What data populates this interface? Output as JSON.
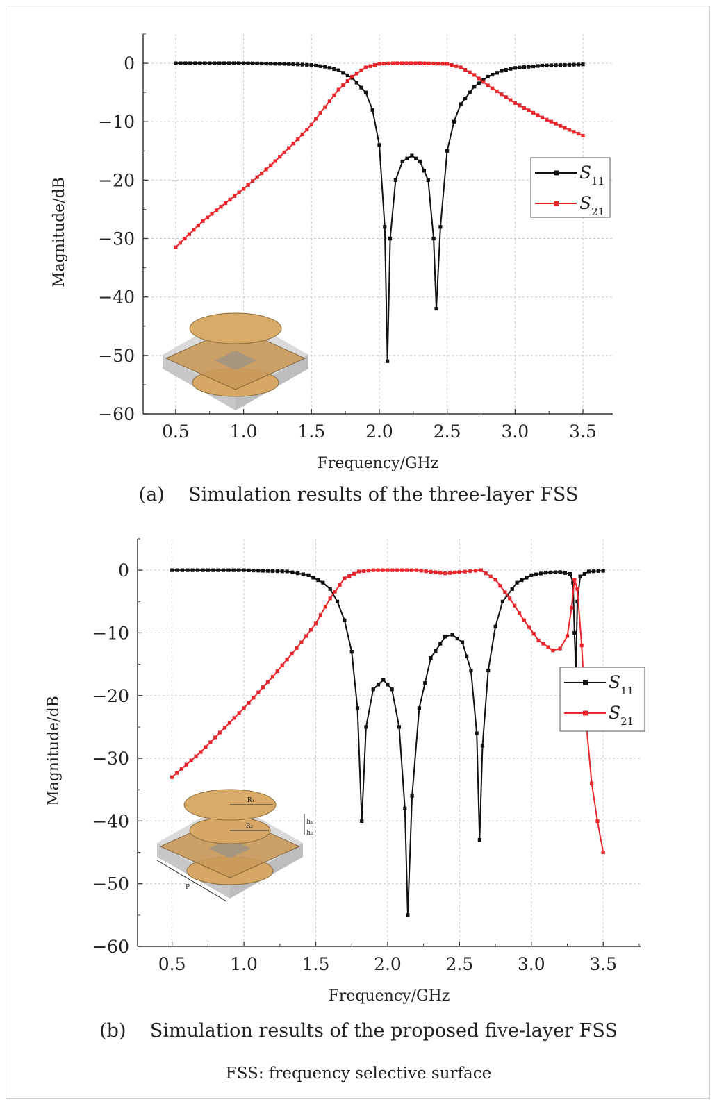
{
  "figure_note": "FSS: frequency selective surface",
  "colors": {
    "s11": "#111111",
    "s21": "#e8272d",
    "grid": "#c8c8c8",
    "axis": "#333333"
  },
  "inset_b_labels": [
    "R₁",
    "R₂",
    "h₁",
    "h₂",
    "P"
  ],
  "chart_data": [
    {
      "type": "line",
      "caption_label": "(a)",
      "caption_text": "Simulation results of the three-layer FSS",
      "xlabel": "Frequency/GHz",
      "ylabel": "Magnitude/dB",
      "xlim": [
        0.26,
        3.72
      ],
      "ylim": [
        -60,
        5
      ],
      "xticks": [
        0.5,
        1.0,
        1.5,
        2.0,
        2.5,
        3.0,
        3.5
      ],
      "xtick_labels": [
        "0.5",
        "1.0",
        "1.5",
        "2.0",
        "2.5",
        "3.0",
        "3.5"
      ],
      "yticks": [
        0,
        -10,
        -20,
        -30,
        -40,
        -50,
        -60
      ],
      "ytick_labels": [
        "0",
        "−10",
        "−20",
        "−30",
        "−40",
        "−50",
        "−60"
      ],
      "grid": true,
      "legend": "right",
      "series": [
        {
          "name": "S11",
          "symbol": "S",
          "subscript": "11",
          "points": [
            [
              0.5,
              0
            ],
            [
              1.0,
              0
            ],
            [
              1.3,
              -0.1
            ],
            [
              1.5,
              -0.3
            ],
            [
              1.6,
              -0.6
            ],
            [
              1.7,
              -1.2
            ],
            [
              1.8,
              -2.5
            ],
            [
              1.9,
              -5
            ],
            [
              1.95,
              -8
            ],
            [
              2.0,
              -14
            ],
            [
              2.04,
              -28
            ],
            [
              2.06,
              -51
            ],
            [
              2.08,
              -30
            ],
            [
              2.12,
              -20
            ],
            [
              2.17,
              -16.8
            ],
            [
              2.24,
              -15.8
            ],
            [
              2.3,
              -16.8
            ],
            [
              2.36,
              -20
            ],
            [
              2.4,
              -30
            ],
            [
              2.42,
              -42
            ],
            [
              2.45,
              -28
            ],
            [
              2.5,
              -15
            ],
            [
              2.55,
              -10
            ],
            [
              2.6,
              -7
            ],
            [
              2.7,
              -4
            ],
            [
              2.8,
              -2.3
            ],
            [
              2.9,
              -1.3
            ],
            [
              3.0,
              -0.8
            ],
            [
              3.2,
              -0.4
            ],
            [
              3.5,
              -0.2
            ]
          ]
        },
        {
          "name": "S21",
          "symbol": "S",
          "subscript": "21",
          "points": [
            [
              0.5,
              -31.5
            ],
            [
              0.7,
              -27
            ],
            [
              1.0,
              -21.5
            ],
            [
              1.2,
              -17.5
            ],
            [
              1.4,
              -13
            ],
            [
              1.5,
              -10.5
            ],
            [
              1.6,
              -7.5
            ],
            [
              1.7,
              -4.5
            ],
            [
              1.8,
              -2.3
            ],
            [
              1.9,
              -0.7
            ],
            [
              2.0,
              -0.1
            ],
            [
              2.1,
              0
            ],
            [
              2.3,
              0
            ],
            [
              2.5,
              -0.1
            ],
            [
              2.6,
              -0.7
            ],
            [
              2.7,
              -2
            ],
            [
              2.8,
              -3.8
            ],
            [
              3.0,
              -6.8
            ],
            [
              3.2,
              -9.3
            ],
            [
              3.4,
              -11.4
            ],
            [
              3.5,
              -12.4
            ]
          ]
        }
      ]
    },
    {
      "type": "line",
      "caption_label": "(b)",
      "caption_text": "Simulation results of the proposed five-layer FSS",
      "xlabel": "Frequency/GHz",
      "ylabel": "Magnitude/dB",
      "xlim": [
        0.26,
        3.76
      ],
      "ylim": [
        -60,
        5
      ],
      "xticks": [
        0.5,
        1.0,
        1.5,
        2.0,
        2.5,
        3.0,
        3.5
      ],
      "xtick_labels": [
        "0.5",
        "1.0",
        "1.5",
        "2.0",
        "2.5",
        "3.0",
        "3.5"
      ],
      "yticks": [
        0,
        -10,
        -20,
        -30,
        -40,
        -50,
        -60
      ],
      "ytick_labels": [
        "0",
        "−10",
        "−20",
        "−30",
        "−40",
        "−50",
        "−60"
      ],
      "grid": true,
      "legend": "right",
      "series": [
        {
          "name": "S11",
          "symbol": "S",
          "subscript": "11",
          "points": [
            [
              0.5,
              0
            ],
            [
              1.0,
              0
            ],
            [
              1.3,
              -0.2
            ],
            [
              1.45,
              -0.8
            ],
            [
              1.55,
              -2
            ],
            [
              1.6,
              -3
            ],
            [
              1.65,
              -5
            ],
            [
              1.7,
              -8
            ],
            [
              1.75,
              -13
            ],
            [
              1.79,
              -22
            ],
            [
              1.82,
              -40
            ],
            [
              1.85,
              -25
            ],
            [
              1.9,
              -19
            ],
            [
              1.97,
              -17.5
            ],
            [
              2.03,
              -19
            ],
            [
              2.08,
              -25
            ],
            [
              2.12,
              -38
            ],
            [
              2.14,
              -55
            ],
            [
              2.17,
              -36
            ],
            [
              2.22,
              -22
            ],
            [
              2.3,
              -14
            ],
            [
              2.4,
              -10.6
            ],
            [
              2.45,
              -10.3
            ],
            [
              2.52,
              -11.5
            ],
            [
              2.58,
              -16
            ],
            [
              2.62,
              -26
            ],
            [
              2.64,
              -43
            ],
            [
              2.66,
              -28
            ],
            [
              2.7,
              -16
            ],
            [
              2.75,
              -9
            ],
            [
              2.8,
              -5
            ],
            [
              2.9,
              -2
            ],
            [
              3.0,
              -0.8
            ],
            [
              3.1,
              -0.4
            ],
            [
              3.2,
              -0.3
            ],
            [
              3.27,
              -0.6
            ],
            [
              3.29,
              -2
            ],
            [
              3.3,
              -10
            ],
            [
              3.31,
              -16
            ],
            [
              3.32,
              -5
            ],
            [
              3.34,
              -1
            ],
            [
              3.4,
              -0.2
            ],
            [
              3.5,
              -0.1
            ]
          ]
        },
        {
          "name": "S21",
          "symbol": "S",
          "subscript": "21",
          "points": [
            [
              0.5,
              -33
            ],
            [
              0.7,
              -29
            ],
            [
              1.0,
              -22
            ],
            [
              1.2,
              -17
            ],
            [
              1.4,
              -11.5
            ],
            [
              1.5,
              -8.5
            ],
            [
              1.6,
              -4.5
            ],
            [
              1.7,
              -1.3
            ],
            [
              1.8,
              -0.2
            ],
            [
              1.9,
              0
            ],
            [
              2.2,
              0
            ],
            [
              2.4,
              -0.5
            ],
            [
              2.5,
              -0.3
            ],
            [
              2.65,
              0
            ],
            [
              2.75,
              -1.5
            ],
            [
              2.85,
              -4.5
            ],
            [
              2.95,
              -8
            ],
            [
              3.05,
              -11.2
            ],
            [
              3.15,
              -12.8
            ],
            [
              3.2,
              -12.5
            ],
            [
              3.25,
              -10.5
            ],
            [
              3.28,
              -6
            ],
            [
              3.3,
              -1.5
            ],
            [
              3.32,
              -3
            ],
            [
              3.35,
              -12
            ],
            [
              3.38,
              -24
            ],
            [
              3.42,
              -34
            ],
            [
              3.46,
              -40
            ],
            [
              3.5,
              -45
            ]
          ]
        }
      ]
    }
  ]
}
